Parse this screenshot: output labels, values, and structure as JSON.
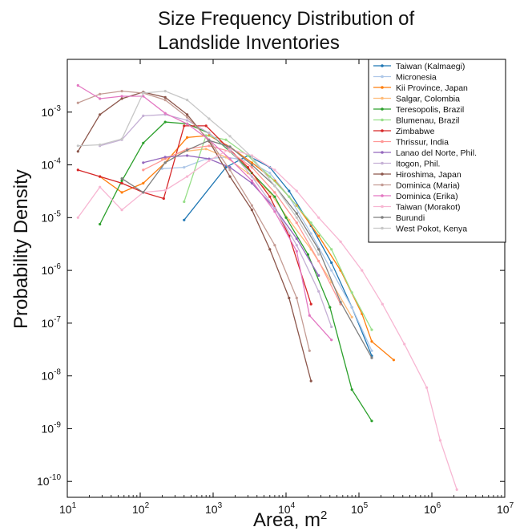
{
  "chart_data": {
    "type": "line",
    "title_lines": [
      "Size Frequency Distribution of",
      "Landslide Inventories"
    ],
    "xlabel": "Area, m",
    "xlabel_superscript": "2",
    "ylabel": "Probability Density",
    "x_scale": "log",
    "y_scale": "log",
    "xlim": [
      10,
      10000000
    ],
    "ylim": [
      5e-11,
      0.01
    ],
    "x_ticks": [
      {
        "value": 10,
        "base": "10",
        "exp": "1"
      },
      {
        "value": 100,
        "base": "10",
        "exp": "2"
      },
      {
        "value": 1000,
        "base": "10",
        "exp": "3"
      },
      {
        "value": 10000,
        "base": "10",
        "exp": "4"
      },
      {
        "value": 100000,
        "base": "10",
        "exp": "5"
      },
      {
        "value": 1000000,
        "base": "10",
        "exp": "6"
      },
      {
        "value": 10000000,
        "base": "10",
        "exp": "7"
      }
    ],
    "y_ticks": [
      {
        "value": 1e-10,
        "base": "10",
        "exp": "-10"
      },
      {
        "value": 1e-09,
        "base": "10",
        "exp": "-9"
      },
      {
        "value": 1e-08,
        "base": "10",
        "exp": "-8"
      },
      {
        "value": 1e-07,
        "base": "10",
        "exp": "-7"
      },
      {
        "value": 1e-06,
        "base": "10",
        "exp": "-6"
      },
      {
        "value": 1e-05,
        "base": "10",
        "exp": "-5"
      },
      {
        "value": 0.0001,
        "base": "10",
        "exp": "-4"
      },
      {
        "value": 0.001,
        "base": "10",
        "exp": "-3"
      }
    ],
    "grid": false,
    "legend_position": "top-right",
    "series": [
      {
        "name": "Taiwan (Kalmaegi)",
        "color": "#1f77b4",
        "x": [
          400,
          1500,
          3000,
          6000,
          11000,
          22000,
          42000,
          80000,
          150000
        ],
        "y": [
          9e-06,
          9e-05,
          0.00015,
          9e-05,
          3.2e-05,
          7e-06,
          1.4e-06,
          2e-07,
          2.4e-08
        ]
      },
      {
        "name": "Micronesia",
        "color": "#aec7e8",
        "x": [
          200,
          400,
          800,
          1500,
          3000,
          6000,
          11000,
          22000,
          42000,
          80000,
          150000
        ],
        "y": [
          8.5e-05,
          9e-05,
          0.00013,
          0.00014,
          0.00012,
          7e-05,
          2.5e-05,
          5e-06,
          1e-06,
          2e-07,
          3e-08
        ]
      },
      {
        "name": "Kii Province, Japan",
        "color": "#ff7f0e",
        "x": [
          28,
          56,
          110,
          220,
          440,
          880,
          1700,
          3400,
          7000,
          14000,
          28000,
          56000,
          110000,
          150000,
          300000
        ],
        "y": [
          6e-05,
          3e-05,
          4.5e-05,
          0.00011,
          0.00033,
          0.00036,
          0.00022,
          0.00011,
          5e-05,
          1.7e-05,
          4.5e-06,
          1e-06,
          1.5e-07,
          4.5e-08,
          2e-08
        ]
      },
      {
        "name": "Salgar, Colombia",
        "color": "#ffbb78",
        "x": [
          200,
          400,
          800,
          1500,
          3000,
          6000,
          11000,
          22000,
          42000,
          80000
        ],
        "y": [
          0.00013,
          0.00018,
          0.0002,
          0.00014,
          7e-05,
          3e-05,
          9e-06,
          2.5e-06,
          6e-07,
          1.3e-07
        ]
      },
      {
        "name": "Teresopolis, Brazil",
        "color": "#2ca02c",
        "x": [
          28,
          56,
          110,
          220,
          440,
          880,
          1700,
          3400,
          7000,
          10000,
          20000,
          40000,
          80000,
          150000
        ],
        "y": [
          7.5e-06,
          5e-05,
          0.00026,
          0.00065,
          0.0006,
          0.0004,
          0.00018,
          7e-05,
          2.5e-05,
          1e-05,
          2e-06,
          2e-07,
          5.5e-09,
          1.4e-09
        ]
      },
      {
        "name": "Blumenau, Brazil",
        "color": "#98df8a",
        "x": [
          400,
          800,
          1500,
          3000,
          6000,
          11000,
          22000,
          42000,
          80000,
          150000
        ],
        "y": [
          2e-05,
          0.00036,
          0.0003,
          0.00015,
          6e-05,
          2.5e-05,
          8e-06,
          2.5e-06,
          3.8e-07,
          7.5e-08
        ]
      },
      {
        "name": "Zimbabwe",
        "color": "#d62728",
        "x": [
          14,
          28,
          56,
          110,
          210,
          400,
          800,
          1500,
          3000,
          6000,
          11000,
          22000
        ],
        "y": [
          8e-05,
          6e-05,
          4.5e-05,
          3e-05,
          2.3e-05,
          0.00055,
          0.00055,
          0.00023,
          9e-05,
          2.5e-05,
          4.5e-06,
          2.3e-07
        ]
      },
      {
        "name": "Thrissur, India",
        "color": "#ff9896",
        "x": [
          110,
          220,
          440,
          880,
          1700,
          3400,
          7000,
          14000,
          28000,
          56000
        ],
        "y": [
          8e-05,
          0.00013,
          0.0002,
          0.00023,
          0.00018,
          9e-05,
          3e-05,
          8e-06,
          1.5e-06,
          2.3e-07
        ]
      },
      {
        "name": "Lanao del Norte, Phil.",
        "color": "#9467bd",
        "x": [
          110,
          220,
          440,
          880,
          1700,
          3400,
          7000,
          14000,
          28000
        ],
        "y": [
          0.00011,
          0.00014,
          0.00015,
          0.00013,
          9e-05,
          4.5e-05,
          1.5e-05,
          4e-06,
          8e-07
        ]
      },
      {
        "name": "Itogon, Phil.",
        "color": "#c5b0d5",
        "x": [
          28,
          56,
          110,
          220,
          440,
          880,
          1700,
          3400,
          7000,
          14000,
          28000,
          42000
        ],
        "y": [
          0.00023,
          0.0003,
          0.00085,
          0.0009,
          0.0007,
          0.0004,
          0.00019,
          6e-05,
          1.5e-05,
          3e-06,
          4e-07,
          8.5e-08
        ]
      },
      {
        "name": "Hiroshima, Japan",
        "color": "#8c564b",
        "x": [
          14,
          28,
          56,
          110,
          220,
          440,
          880,
          1700,
          3400,
          6000,
          11000,
          22000
        ],
        "y": [
          0.00018,
          0.0009,
          0.0018,
          0.0024,
          0.0019,
          0.0009,
          0.00028,
          6e-05,
          1.4e-05,
          2.5e-06,
          3e-07,
          8e-09
        ]
      },
      {
        "name": "Dominica (Maria)",
        "color": "#c49c94",
        "x": [
          14,
          28,
          56,
          110,
          220,
          440,
          880,
          1700,
          3400,
          7000,
          14000,
          21000
        ],
        "y": [
          0.0015,
          0.0022,
          0.0025,
          0.0023,
          0.0017,
          0.0008,
          0.0003,
          8e-05,
          1.7e-05,
          3e-06,
          3e-07,
          3e-08
        ]
      },
      {
        "name": "Dominica (Erika)",
        "color": "#e377c2",
        "x": [
          14,
          28,
          56,
          110,
          220,
          440,
          880,
          1700,
          3400,
          7000,
          14000,
          21000,
          42000
        ],
        "y": [
          0.0032,
          0.0018,
          0.002,
          0.002,
          0.00095,
          0.0006,
          0.0003,
          0.00013,
          5e-05,
          1.3e-05,
          2.3e-06,
          1.4e-07,
          4.8e-08
        ]
      },
      {
        "name": "Taiwan (Morakot)",
        "color": "#f7b6d2",
        "x": [
          14,
          28,
          56,
          110,
          220,
          440,
          880,
          1700,
          3400,
          7000,
          14000,
          28000,
          56000,
          110000,
          210000,
          420000,
          850000,
          1300000,
          2200000
        ],
        "y": [
          1e-05,
          3.8e-05,
          1.4e-05,
          3e-05,
          3.3e-05,
          6e-05,
          0.00012,
          0.0002,
          0.00015,
          8e-05,
          3.2e-05,
          1e-05,
          3.5e-06,
          1e-06,
          2.3e-07,
          4e-08,
          6e-09,
          6e-10,
          7e-11
        ]
      },
      {
        "name": "Burundi",
        "color": "#7f7f7f",
        "x": [
          56,
          110,
          220,
          440,
          880,
          1700,
          3400,
          7000,
          14000,
          28000,
          56000,
          150000
        ],
        "y": [
          5.5e-05,
          3e-05,
          0.00011,
          0.00019,
          0.00029,
          0.00022,
          0.0001,
          4e-05,
          1.2e-05,
          2.5e-06,
          2.5e-07,
          2.2e-08
        ]
      },
      {
        "name": "West Pokot, Kenya",
        "color": "#c7c7c7",
        "x": [
          14,
          28,
          56,
          110,
          220,
          440,
          880,
          1700,
          3400,
          7000,
          14000,
          28000
        ],
        "y": [
          0.00023,
          0.00024,
          0.00031,
          0.0023,
          0.0025,
          0.0017,
          0.00075,
          0.00035,
          0.00014,
          4e-05,
          1e-05,
          2e-06
        ]
      }
    ]
  }
}
